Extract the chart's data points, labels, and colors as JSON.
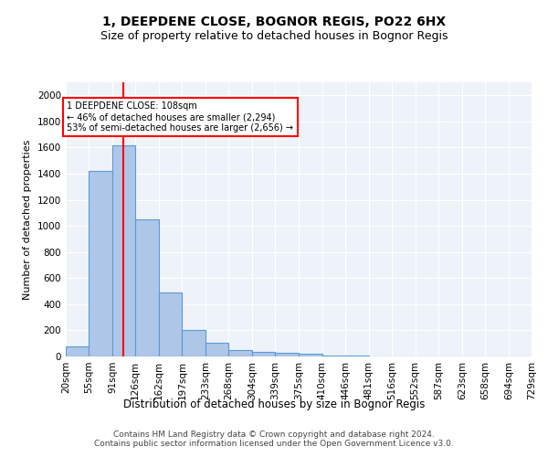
{
  "title": "1, DEEPDENE CLOSE, BOGNOR REGIS, PO22 6HX",
  "subtitle": "Size of property relative to detached houses in Bognor Regis",
  "xlabel": "Distribution of detached houses by size in Bognor Regis",
  "ylabel": "Number of detached properties",
  "bar_edges": [
    20,
    55,
    91,
    126,
    162,
    197,
    233,
    268,
    304,
    339,
    375,
    410,
    446,
    481,
    516,
    552,
    587,
    623,
    658,
    694,
    729
  ],
  "bar_heights": [
    80,
    1420,
    1620,
    1050,
    490,
    205,
    105,
    48,
    35,
    25,
    18,
    10,
    5,
    3,
    2,
    1,
    1,
    0,
    0,
    0
  ],
  "bar_color": "#aec6e8",
  "bar_edgecolor": "#5b9bd5",
  "bar_linewidth": 0.8,
  "ylim": [
    0,
    2100
  ],
  "yticks": [
    0,
    200,
    400,
    600,
    800,
    1000,
    1200,
    1400,
    1600,
    1800,
    2000
  ],
  "red_line_x": 108,
  "annotation_text": "1 DEEPDENE CLOSE: 108sqm\n← 46% of detached houses are smaller (2,294)\n53% of semi-detached houses are larger (2,656) →",
  "footer_line1": "Contains HM Land Registry data © Crown copyright and database right 2024.",
  "footer_line2": "Contains public sector information licensed under the Open Government Licence v3.0.",
  "background_color": "#eef2f9",
  "grid_color": "#ffffff",
  "title_fontsize": 10,
  "subtitle_fontsize": 9,
  "ylabel_fontsize": 8,
  "xlabel_fontsize": 8.5,
  "tick_fontsize": 7.5,
  "footer_fontsize": 6.5
}
